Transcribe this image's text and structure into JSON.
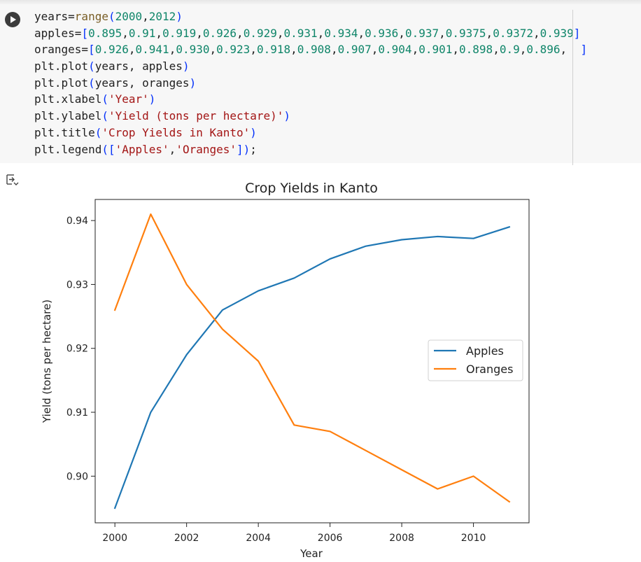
{
  "cell": {
    "code_lines": [
      [
        [
          "years=",
          ""
        ],
        [
          "range",
          "k-fn"
        ],
        [
          "(",
          "k-br"
        ],
        [
          "2000",
          "k-num"
        ],
        [
          ",",
          ""
        ],
        [
          "2012",
          "k-num"
        ],
        [
          ")",
          "k-br"
        ]
      ],
      [
        [
          "apples=",
          ""
        ],
        [
          "[",
          "k-br"
        ],
        [
          "0.895",
          "k-num"
        ],
        [
          ",",
          ""
        ],
        [
          "0.91",
          "k-num"
        ],
        [
          ",",
          ""
        ],
        [
          "0.919",
          "k-num"
        ],
        [
          ",",
          ""
        ],
        [
          "0.926",
          "k-num"
        ],
        [
          ",",
          ""
        ],
        [
          "0.929",
          "k-num"
        ],
        [
          ",",
          ""
        ],
        [
          "0.931",
          "k-num"
        ],
        [
          ",",
          ""
        ],
        [
          "0.934",
          "k-num"
        ],
        [
          ",",
          ""
        ],
        [
          "0.936",
          "k-num"
        ],
        [
          ",",
          ""
        ],
        [
          "0.937",
          "k-num"
        ],
        [
          ",",
          ""
        ],
        [
          "0.9375",
          "k-num"
        ],
        [
          ",",
          ""
        ],
        [
          "0.9372",
          "k-num"
        ],
        [
          ",",
          ""
        ],
        [
          "0.939",
          "k-num"
        ],
        [
          "]",
          "k-br"
        ]
      ],
      [
        [
          "oranges=",
          ""
        ],
        [
          "[",
          "k-br"
        ],
        [
          "0.926",
          "k-num"
        ],
        [
          ",",
          ""
        ],
        [
          "0.941",
          "k-num"
        ],
        [
          ",",
          ""
        ],
        [
          "0.930",
          "k-num"
        ],
        [
          ",",
          ""
        ],
        [
          "0.923",
          "k-num"
        ],
        [
          ",",
          ""
        ],
        [
          "0.918",
          "k-num"
        ],
        [
          ",",
          ""
        ],
        [
          "0.908",
          "k-num"
        ],
        [
          ",",
          ""
        ],
        [
          "0.907",
          "k-num"
        ],
        [
          ",",
          ""
        ],
        [
          "0.904",
          "k-num"
        ],
        [
          ",",
          ""
        ],
        [
          "0.901",
          "k-num"
        ],
        [
          ",",
          ""
        ],
        [
          "0.898",
          "k-num"
        ],
        [
          ",",
          ""
        ],
        [
          "0.9",
          "k-num"
        ],
        [
          ",",
          ""
        ],
        [
          "0.896",
          "k-num"
        ],
        [
          ",  ",
          ""
        ],
        [
          "]",
          "k-br"
        ]
      ],
      [
        [
          "plt.plot",
          ""
        ],
        [
          "(",
          "k-br"
        ],
        [
          "years, apples",
          ""
        ],
        [
          ")",
          "k-br"
        ]
      ],
      [
        [
          "plt.plot",
          ""
        ],
        [
          "(",
          "k-br"
        ],
        [
          "years, oranges",
          ""
        ],
        [
          ")",
          "k-br"
        ]
      ],
      [
        [
          "plt.xlabel",
          ""
        ],
        [
          "(",
          "k-br"
        ],
        [
          "'Year'",
          "k-str"
        ],
        [
          ")",
          "k-br"
        ]
      ],
      [
        [
          "plt.ylabel",
          ""
        ],
        [
          "(",
          "k-br"
        ],
        [
          "'Yield (tons per hectare)'",
          "k-str"
        ],
        [
          ")",
          "k-br"
        ]
      ],
      [
        [
          "plt.title",
          ""
        ],
        [
          "(",
          "k-br"
        ],
        [
          "'Crop Yields in Kanto'",
          "k-str"
        ],
        [
          ")",
          "k-br"
        ]
      ],
      [
        [
          "plt.legend",
          ""
        ],
        [
          "(",
          "k-br"
        ],
        [
          "[",
          "k-br"
        ],
        [
          "'Apples'",
          "k-str"
        ],
        [
          ",",
          ""
        ],
        [
          "'Oranges'",
          "k-str"
        ],
        [
          "]",
          "k-br"
        ],
        [
          ")",
          "k-br"
        ],
        [
          ";",
          ""
        ]
      ]
    ]
  },
  "chart_data": {
    "type": "line",
    "title": "Crop Yields in Kanto",
    "xlabel": "Year",
    "ylabel": "Yield (tons per hectare)",
    "x": [
      2000,
      2001,
      2002,
      2003,
      2004,
      2005,
      2006,
      2007,
      2008,
      2009,
      2010,
      2011
    ],
    "series": [
      {
        "name": "Apples",
        "color": "#1f77b4",
        "values": [
          0.895,
          0.91,
          0.919,
          0.926,
          0.929,
          0.931,
          0.934,
          0.936,
          0.937,
          0.9375,
          0.9372,
          0.939
        ]
      },
      {
        "name": "Oranges",
        "color": "#ff7f0e",
        "values": [
          0.926,
          0.941,
          0.93,
          0.923,
          0.918,
          0.908,
          0.907,
          0.904,
          0.901,
          0.898,
          0.9,
          0.896
        ]
      }
    ],
    "xticks": [
      2000,
      2002,
      2004,
      2006,
      2008,
      2010
    ],
    "xtick_labels": [
      "2000",
      "2002",
      "2004",
      "2006",
      "2008",
      "2010"
    ],
    "yticks": [
      0.9,
      0.91,
      0.92,
      0.93,
      0.94
    ],
    "ytick_labels": [
      "0.90",
      "0.91",
      "0.92",
      "0.93",
      "0.94"
    ],
    "xlim": [
      1999.45,
      2011.55
    ],
    "ylim": [
      0.8927,
      0.9433
    ],
    "grid": false,
    "legend": "center-right"
  },
  "icons": {
    "run": "play-icon",
    "output": "output-collapse-icon"
  }
}
